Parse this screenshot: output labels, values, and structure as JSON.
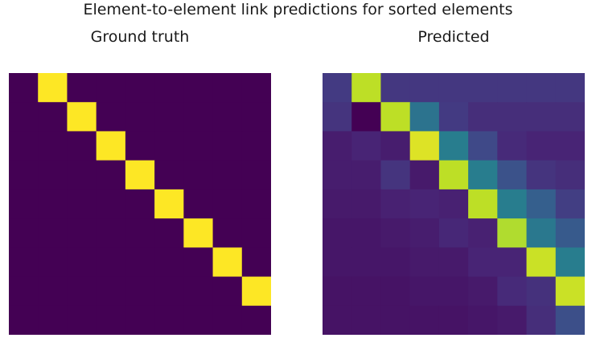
{
  "title": "Element-to-element link predictions for sorted elements",
  "colors": {
    "colormap": "viridis",
    "low": "#440154",
    "mid": "#21918c",
    "high": "#fde725"
  },
  "chart_data": [
    {
      "type": "heatmap",
      "title": "Ground truth",
      "rows": 9,
      "cols": 9,
      "vmin": 0,
      "vmax": 1,
      "values": [
        [
          0.0,
          1.0,
          0.0,
          0.0,
          0.0,
          0.0,
          0.0,
          0.0,
          0.0
        ],
        [
          0.0,
          0.0,
          1.0,
          0.0,
          0.0,
          0.0,
          0.0,
          0.0,
          0.0
        ],
        [
          0.0,
          0.0,
          0.0,
          1.0,
          0.0,
          0.0,
          0.0,
          0.0,
          0.0
        ],
        [
          0.0,
          0.0,
          0.0,
          0.0,
          1.0,
          0.0,
          0.0,
          0.0,
          0.0
        ],
        [
          0.0,
          0.0,
          0.0,
          0.0,
          0.0,
          1.0,
          0.0,
          0.0,
          0.0
        ],
        [
          0.0,
          0.0,
          0.0,
          0.0,
          0.0,
          0.0,
          1.0,
          0.0,
          0.0
        ],
        [
          0.0,
          0.0,
          0.0,
          0.0,
          0.0,
          0.0,
          0.0,
          1.0,
          0.0
        ],
        [
          0.0,
          0.0,
          0.0,
          0.0,
          0.0,
          0.0,
          0.0,
          0.0,
          1.0
        ],
        [
          0.0,
          0.0,
          0.0,
          0.0,
          0.0,
          0.0,
          0.0,
          0.0,
          0.0
        ]
      ]
    },
    {
      "type": "heatmap",
      "title": "Predicted",
      "rows": 9,
      "cols": 9,
      "vmin": 0,
      "vmax": 1,
      "values": [
        [
          0.17,
          0.9,
          0.16,
          0.16,
          0.16,
          0.16,
          0.16,
          0.16,
          0.16
        ],
        [
          0.15,
          0.0,
          0.9,
          0.38,
          0.17,
          0.13,
          0.13,
          0.13,
          0.13
        ],
        [
          0.08,
          0.1,
          0.08,
          0.95,
          0.42,
          0.22,
          0.12,
          0.1,
          0.1
        ],
        [
          0.08,
          0.08,
          0.15,
          0.07,
          0.9,
          0.42,
          0.25,
          0.15,
          0.13
        ],
        [
          0.07,
          0.07,
          0.09,
          0.1,
          0.09,
          0.9,
          0.42,
          0.3,
          0.18
        ],
        [
          0.06,
          0.06,
          0.07,
          0.08,
          0.11,
          0.09,
          0.88,
          0.4,
          0.28
        ],
        [
          0.06,
          0.06,
          0.06,
          0.07,
          0.07,
          0.1,
          0.1,
          0.92,
          0.42
        ],
        [
          0.05,
          0.05,
          0.05,
          0.06,
          0.06,
          0.07,
          0.12,
          0.14,
          0.92
        ],
        [
          0.05,
          0.05,
          0.05,
          0.05,
          0.05,
          0.06,
          0.07,
          0.13,
          0.24
        ]
      ]
    }
  ]
}
